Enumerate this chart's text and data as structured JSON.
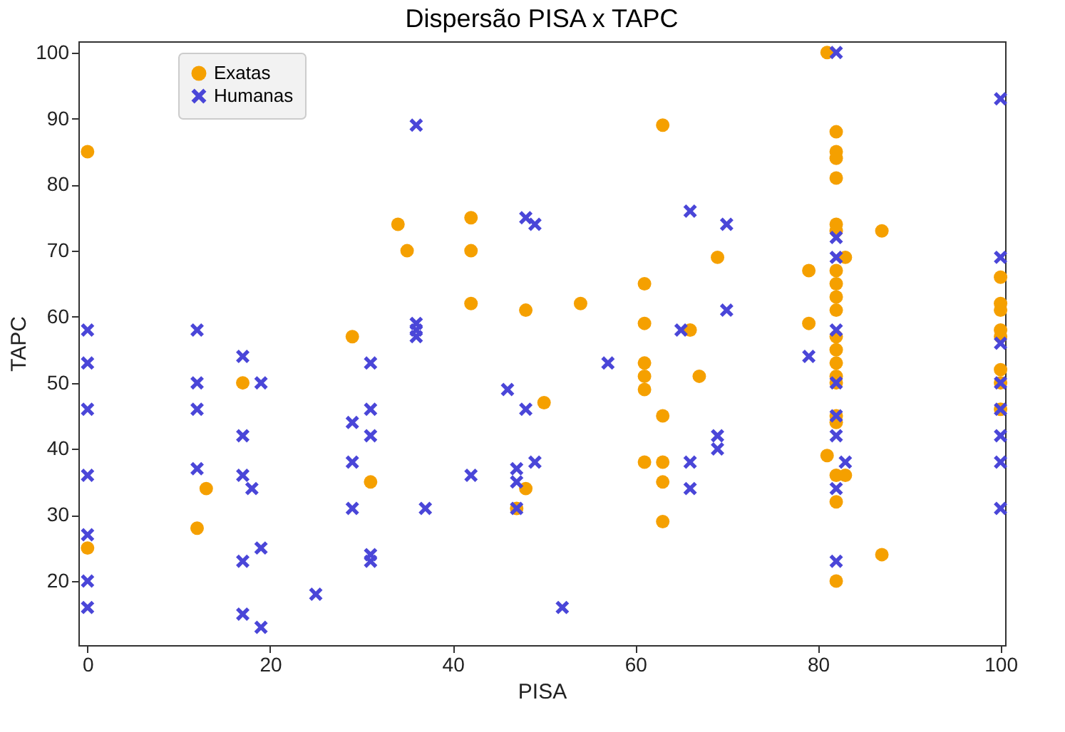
{
  "chart_data": {
    "type": "scatter",
    "title": "Dispersão PISA x TAPC",
    "xlabel": "PISA",
    "ylabel": "TAPC",
    "xlim": [
      -1,
      100.5
    ],
    "ylim": [
      10.3,
      101.7
    ],
    "xticks": [
      0,
      20,
      40,
      60,
      80,
      100
    ],
    "yticks": [
      20,
      30,
      40,
      50,
      60,
      70,
      80,
      90,
      100
    ],
    "grid": false,
    "legend": "top left",
    "series": [
      {
        "name": "Exatas",
        "color": "#f5a000",
        "marker": "circle",
        "x": [
          0,
          0,
          12,
          13,
          17,
          29,
          31,
          34,
          35,
          42,
          42,
          42,
          48,
          48,
          47,
          50,
          54,
          61,
          61,
          61,
          61,
          61,
          61,
          63,
          63,
          63,
          63,
          63,
          66,
          67,
          69,
          79,
          79,
          81,
          81,
          82,
          82,
          82,
          82,
          82,
          82,
          82,
          82,
          82,
          82,
          82,
          82,
          82,
          82,
          82,
          82,
          82,
          82,
          82,
          82,
          83,
          83,
          87,
          87,
          100,
          100,
          100,
          100,
          100,
          100,
          100,
          100
        ],
        "values": [
          85,
          25,
          28,
          34,
          50,
          57,
          35,
          74,
          70,
          75,
          70,
          62,
          61,
          34,
          31,
          47,
          62,
          65,
          59,
          53,
          51,
          49,
          38,
          89,
          45,
          38,
          35,
          29,
          58,
          51,
          69,
          67,
          59,
          100,
          39,
          88,
          85,
          84,
          81,
          74,
          73,
          67,
          65,
          63,
          61,
          57,
          55,
          53,
          51,
          50,
          45,
          44,
          36,
          32,
          20,
          69,
          36,
          73,
          24,
          66,
          62,
          61,
          58,
          57,
          52,
          50,
          46
        ]
      },
      {
        "name": "Humanas",
        "color": "#4a46d8",
        "marker": "cross",
        "x": [
          0,
          0,
          0,
          0,
          0,
          0,
          0,
          12,
          12,
          12,
          12,
          17,
          17,
          17,
          17,
          17,
          19,
          19,
          19,
          18,
          25,
          29,
          29,
          29,
          31,
          31,
          31,
          31,
          31,
          36,
          36,
          36,
          36,
          37,
          42,
          46,
          47,
          47,
          47,
          48,
          48,
          49,
          49,
          52,
          57,
          65,
          66,
          66,
          66,
          69,
          69,
          70,
          70,
          79,
          82,
          82,
          82,
          82,
          82,
          82,
          82,
          82,
          82,
          83,
          100,
          100,
          100,
          100,
          100,
          100,
          100,
          100
        ],
        "values": [
          58,
          53,
          46,
          36,
          27,
          20,
          16,
          58,
          50,
          46,
          37,
          54,
          42,
          36,
          23,
          15,
          50,
          25,
          13,
          34,
          18,
          44,
          38,
          31,
          53,
          46,
          42,
          24,
          23,
          89,
          59,
          58,
          57,
          31,
          36,
          49,
          37,
          35,
          31,
          75,
          46,
          74,
          38,
          16,
          53,
          58,
          76,
          38,
          34,
          42,
          40,
          74,
          61,
          54,
          100,
          72,
          69,
          58,
          50,
          45,
          42,
          34,
          23,
          38,
          93,
          69,
          56,
          50,
          46,
          42,
          38,
          31
        ]
      }
    ]
  }
}
